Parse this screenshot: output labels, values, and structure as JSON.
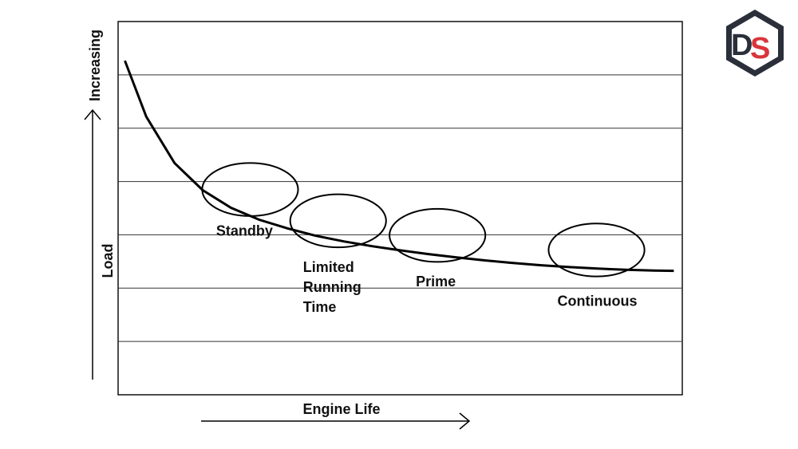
{
  "chart_data": {
    "type": "line",
    "xlabel": "Engine Life",
    "ylabel_text": "Load",
    "ylabel_arrow_text": "Increasing",
    "grid": true,
    "grid_lines": 6,
    "curve": {
      "x": [
        0.012,
        0.05,
        0.1,
        0.15,
        0.2,
        0.25,
        0.3,
        0.35,
        0.4,
        0.45,
        0.5,
        0.55,
        0.6,
        0.65,
        0.7,
        0.75,
        0.8,
        0.85,
        0.9,
        0.95,
        0.985
      ],
      "y": [
        0.895,
        0.745,
        0.621,
        0.548,
        0.501,
        0.469,
        0.446,
        0.426,
        0.411,
        0.398,
        0.387,
        0.377,
        0.368,
        0.36,
        0.353,
        0.347,
        0.342,
        0.338,
        0.335,
        0.333,
        0.332
      ]
    },
    "regions": [
      {
        "name": "Standby",
        "lines": [
          "Standby"
        ],
        "cx": 0.234,
        "cy": 0.55,
        "rx": 0.085,
        "ry": 0.071
      },
      {
        "name": "Limited Running Time",
        "lines": [
          "Limited",
          "Running",
          "Time"
        ],
        "cx": 0.39,
        "cy": 0.466,
        "rx": 0.085,
        "ry": 0.071
      },
      {
        "name": "Prime",
        "lines": [
          "Prime"
        ],
        "cx": 0.566,
        "cy": 0.427,
        "rx": 0.085,
        "ry": 0.071
      },
      {
        "name": "Continuous",
        "lines": [
          "Continuous"
        ],
        "cx": 0.848,
        "cy": 0.388,
        "rx": 0.085,
        "ry": 0.071
      }
    ]
  },
  "logo": {
    "letters": "DS",
    "colors": {
      "dark": "#2a2f3a",
      "red": "#d8353a"
    }
  }
}
